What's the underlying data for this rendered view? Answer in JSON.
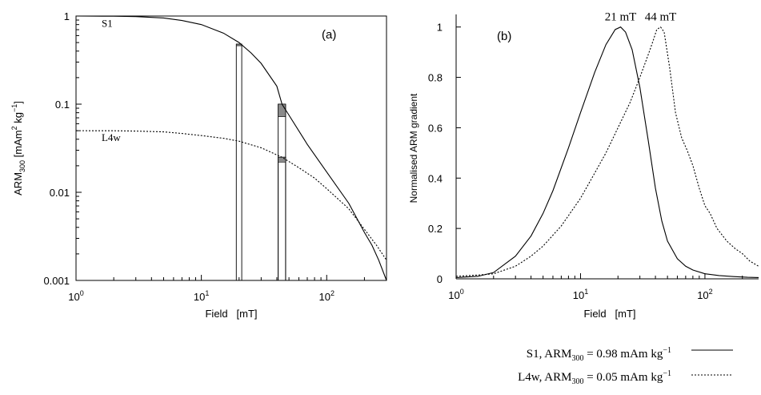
{
  "chart_data": [
    {
      "id": "a",
      "type": "line",
      "panel_label": "(a)",
      "xlabel": "Field   [mT]",
      "ylabel": {
        "pre": "ARM",
        "sub": "300",
        "units_a": " [mAm",
        "units_sup1": "2",
        "units_b": " kg",
        "units_sup2": "−1",
        "units_c": "]"
      },
      "xscale": "log",
      "yscale": "log",
      "xlim": [
        1,
        300
      ],
      "ylim": [
        0.001,
        1
      ],
      "xticks": [
        {
          "value": 1,
          "base": "10",
          "exp": "0"
        },
        {
          "value": 10,
          "base": "10",
          "exp": "1"
        },
        {
          "value": 100,
          "base": "10",
          "exp": "2"
        }
      ],
      "yticks": [
        {
          "value": 1,
          "label": "1"
        },
        {
          "value": 0.1,
          "label": "0.1"
        },
        {
          "value": 0.01,
          "label": "0.01"
        },
        {
          "value": 0.001,
          "label": "0.001"
        }
      ],
      "series": [
        {
          "name": "S1",
          "style": "solid",
          "x": [
            1,
            2,
            3,
            5,
            7,
            10,
            15,
            20,
            25,
            30,
            40,
            44,
            50,
            70,
            100,
            150,
            200,
            230,
            260,
            300
          ],
          "y": [
            1,
            0.995,
            0.985,
            0.95,
            0.89,
            0.8,
            0.64,
            0.5,
            0.38,
            0.29,
            0.16,
            0.1,
            0.075,
            0.035,
            0.017,
            0.0075,
            0.0035,
            0.0025,
            0.0017,
            0.001
          ]
        },
        {
          "name": "L4w",
          "style": "dotted",
          "x": [
            1,
            2,
            3,
            5,
            7,
            10,
            15,
            20,
            30,
            44,
            60,
            80,
            100,
            150,
            200,
            250,
            300
          ],
          "y": [
            0.05,
            0.0499,
            0.0495,
            0.0485,
            0.0465,
            0.044,
            0.041,
            0.038,
            0.032,
            0.025,
            0.019,
            0.0145,
            0.011,
            0.0065,
            0.0038,
            0.0025,
            0.0017
          ]
        }
      ],
      "series_labels": [
        {
          "text": "S1",
          "x": 1.6,
          "y": 0.75
        },
        {
          "text": "L4w",
          "x": 1.6,
          "y": 0.038
        }
      ],
      "bars": [
        {
          "x0": 19,
          "x1": 21,
          "y_top": 0.48,
          "shade_bottom": 0.46
        },
        {
          "x0": 41,
          "x1": 47,
          "y_top": 0.1,
          "shade_bottom": 0.072
        },
        {
          "x0": 41,
          "x1": 47,
          "y_top": 0.025,
          "shade_bottom": 0.022
        }
      ]
    },
    {
      "id": "b",
      "type": "line",
      "panel_label": "(b)",
      "xlabel": "Field   [mT]",
      "ylabel": "Normalised ARM gradient",
      "xscale": "log",
      "yscale": "linear",
      "xlim": [
        1,
        270
      ],
      "ylim": [
        0,
        1.05
      ],
      "xticks": [
        {
          "value": 1,
          "base": "10",
          "exp": "0"
        },
        {
          "value": 10,
          "base": "10",
          "exp": "1"
        },
        {
          "value": 100,
          "base": "10",
          "exp": "2"
        }
      ],
      "yticks": [
        {
          "value": 0,
          "label": "0"
        },
        {
          "value": 0.2,
          "label": "0.2"
        },
        {
          "value": 0.4,
          "label": "0.4"
        },
        {
          "value": 0.6,
          "label": "0.6"
        },
        {
          "value": 0.8,
          "label": "0.8"
        },
        {
          "value": 1,
          "label": "1"
        }
      ],
      "series": [
        {
          "name": "S1",
          "style": "solid",
          "x": [
            1,
            1.5,
            2,
            3,
            4,
            5,
            6,
            8,
            10,
            13,
            16,
            19,
            21,
            23,
            26,
            30,
            35,
            40,
            45,
            50,
            60,
            70,
            80,
            100,
            130,
            170,
            220,
            270
          ],
          "y": [
            0.005,
            0.01,
            0.025,
            0.09,
            0.17,
            0.26,
            0.35,
            0.52,
            0.66,
            0.82,
            0.93,
            0.99,
            1.0,
            0.98,
            0.91,
            0.76,
            0.55,
            0.36,
            0.23,
            0.15,
            0.08,
            0.05,
            0.035,
            0.02,
            0.013,
            0.009,
            0.006,
            0.005
          ]
        },
        {
          "name": "L4w",
          "style": "dotted",
          "x": [
            1,
            1.5,
            2,
            3,
            4,
            5,
            7,
            10,
            13,
            16,
            20,
            25,
            30,
            35,
            38,
            41,
            44,
            47,
            52,
            58,
            65,
            72,
            80,
            90,
            100,
            110,
            125,
            150,
            175,
            200,
            230,
            270
          ],
          "y": [
            0.01,
            0.015,
            0.02,
            0.05,
            0.09,
            0.13,
            0.21,
            0.32,
            0.42,
            0.5,
            0.6,
            0.7,
            0.8,
            0.89,
            0.94,
            0.99,
            1.0,
            0.98,
            0.84,
            0.66,
            0.56,
            0.51,
            0.45,
            0.36,
            0.29,
            0.26,
            0.2,
            0.15,
            0.12,
            0.1,
            0.07,
            0.05
          ]
        }
      ],
      "peak_labels": [
        {
          "text": "21 mT",
          "x": 21,
          "y": 1
        },
        {
          "text": "44 mT",
          "x": 44,
          "y": 1
        }
      ],
      "legend": {
        "placement": "below",
        "entries": [
          {
            "series": "S1",
            "pre": "S1, ARM",
            "sub": "300",
            "mid": " = 0.98 mAm kg",
            "sup": "−1",
            "style": "solid"
          },
          {
            "series": "L4w",
            "pre": "L4w, ARM",
            "sub": "300",
            "mid": " = 0.05 mAm kg",
            "sup": "−1",
            "style": "dotted"
          }
        ]
      }
    }
  ]
}
